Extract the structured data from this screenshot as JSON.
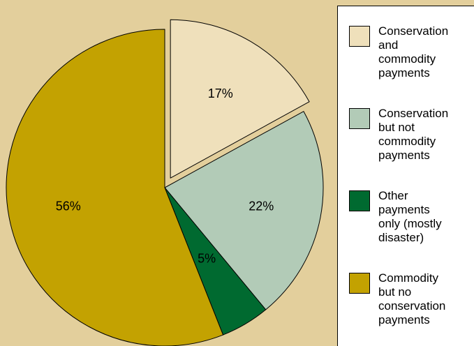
{
  "chart_data": {
    "type": "pie",
    "slices": [
      {
        "label": "Conservation and commodity payments",
        "value": 17,
        "value_label": "17%",
        "color": "#efe0bb",
        "exploded": true
      },
      {
        "label": "Conservation but not commodity payments",
        "value": 22,
        "value_label": "22%",
        "color": "#b2cbb7",
        "exploded": false
      },
      {
        "label": "Other payments only (mostly disaster)",
        "value": 5,
        "value_label": "5%",
        "color": "#006a30",
        "exploded": false
      },
      {
        "label": "Commodity but no conservation payments",
        "value": 56,
        "value_label": "56%",
        "color": "#c3a201",
        "exploded": false
      }
    ],
    "legend_position": "right",
    "legend": [
      {
        "lines": [
          "Conservation",
          "and",
          "commodity",
          "payments"
        ],
        "color": "#efe0bb"
      },
      {
        "lines": [
          "Conservation",
          "but not",
          "commodity",
          "payments"
        ],
        "color": "#b2cbb7"
      },
      {
        "lines": [
          "Other",
          "payments",
          "only (mostly",
          "disaster)"
        ],
        "color": "#006a30"
      },
      {
        "lines": [
          "Commodity",
          "but no",
          "conservation",
          "payments"
        ],
        "color": "#c3a201"
      }
    ],
    "background_color": "#e3cf9c"
  }
}
